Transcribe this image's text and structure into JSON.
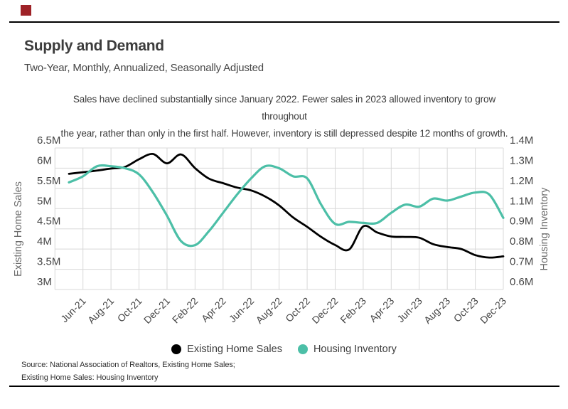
{
  "brand": {
    "mark_color": "#9e2227"
  },
  "header": {
    "title": "Supply and Demand",
    "subtitle": "Two-Year, Monthly, Annualized, Seasonally Adjusted"
  },
  "note": {
    "line1": "Sales have declined substantially since January 2022. Fewer sales in 2023 allowed inventory to grow throughout",
    "line2": "the year, rather than only in the first half. However, inventory is still depressed despite 12 months of growth."
  },
  "chart_data": {
    "type": "line",
    "grid": true,
    "x": [
      "May-21",
      "Jun-21",
      "Jul-21",
      "Aug-21",
      "Sep-21",
      "Oct-21",
      "Nov-21",
      "Dec-21",
      "Jan-22",
      "Feb-22",
      "Mar-22",
      "Apr-22",
      "May-22",
      "Jun-22",
      "Jul-22",
      "Aug-22",
      "Sep-22",
      "Oct-22",
      "Nov-22",
      "Dec-22",
      "Jan-23",
      "Feb-23",
      "Mar-23",
      "Apr-23",
      "May-23",
      "Jun-23",
      "Jul-23",
      "Aug-23",
      "Sep-23",
      "Oct-23",
      "Nov-23",
      "Dec-23"
    ],
    "x_tick_labels": [
      "Jun-21",
      "Aug-21",
      "Oct-21",
      "Dec-21",
      "Feb-22",
      "Apr-22",
      "Jun-22",
      "Aug-22",
      "Oct-22",
      "Dec-22",
      "Feb-23",
      "Apr-23",
      "Jun-23",
      "Aug-23",
      "Oct-23",
      "Dec-23"
    ],
    "left_axis": {
      "label": "Existing Home Sales",
      "ticks": [
        "6.5M",
        "6M",
        "5.5M",
        "5M",
        "4.5M",
        "4M",
        "3.5M",
        "3M"
      ],
      "tick_values": [
        6.5,
        6.0,
        5.5,
        5.0,
        4.5,
        4.0,
        3.5,
        3.0
      ],
      "range": [
        3.0,
        6.5
      ]
    },
    "right_axis": {
      "label": "Housing Inventory",
      "ticks": [
        "1.4M",
        "1.3M",
        "1.2M",
        "1.1M",
        "0.9M",
        "0.8M",
        "0.7M",
        "0.6M"
      ],
      "tick_values": [
        1.4,
        1.3,
        1.2,
        1.1,
        0.9,
        0.8,
        0.7,
        0.6
      ],
      "range": [
        0.6,
        1.4
      ]
    },
    "series": [
      {
        "name": "Existing Home Sales",
        "axis": "left",
        "color": "#000000",
        "values": [
          5.86,
          5.9,
          5.94,
          5.99,
          6.03,
          6.22,
          6.35,
          6.12,
          6.34,
          6.0,
          5.74,
          5.63,
          5.52,
          5.45,
          5.3,
          5.08,
          4.78,
          4.55,
          4.3,
          4.1,
          3.99,
          4.56,
          4.41,
          4.31,
          4.3,
          4.28,
          4.12,
          4.05,
          4.0,
          3.85,
          3.79,
          3.82
        ]
      },
      {
        "name": "Housing Inventory",
        "axis": "right",
        "color": "#4CBFA7",
        "values": [
          1.23,
          1.26,
          1.31,
          1.31,
          1.3,
          1.27,
          1.18,
          1.03,
          0.84,
          0.82,
          0.89,
          1.06,
          1.17,
          1.25,
          1.31,
          1.3,
          1.26,
          1.25,
          1.12,
          0.95,
          0.97,
          0.96,
          0.96,
          1.06,
          1.12,
          1.11,
          1.15,
          1.14,
          1.16,
          1.18,
          1.17,
          1.01
        ]
      }
    ]
  },
  "legend": {
    "items": [
      {
        "label": "Existing Home Sales",
        "color": "#000000"
      },
      {
        "label": "Housing Inventory",
        "color": "#4CBFA7"
      }
    ]
  },
  "source": {
    "line1": "Source:  National Association of Realtors, Existing Home Sales;",
    "line2": "Existing Home Sales: Housing Inventory"
  }
}
